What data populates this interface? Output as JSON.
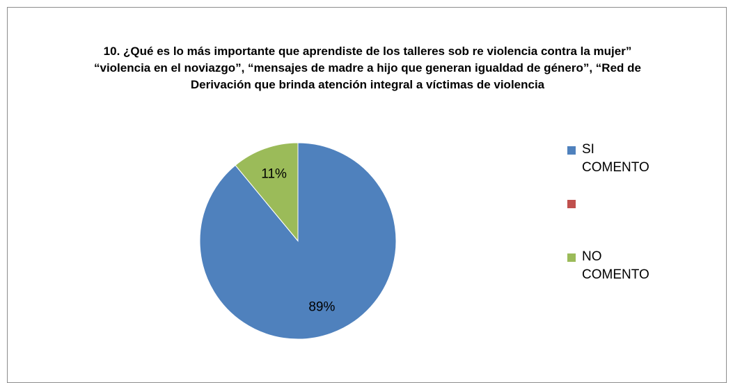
{
  "chart_data": {
    "type": "pie",
    "title": "10. ¿Qué es lo más importante que aprendiste de los talleres sob re violencia contra la mujer” “violencia en el noviazgo”, “mensajes de madre a hijo que generan igualdad de género”, “Red de Derivación que brinda atención integral  a víctimas de violencia",
    "categories": [
      "SI COMENTO",
      null,
      "NO COMENTO"
    ],
    "values": [
      89,
      0,
      11
    ],
    "value_labels": [
      "89%",
      null,
      "11%"
    ],
    "colors": [
      "#4f81bd",
      "#c0504d",
      "#9bbb59"
    ],
    "legend": "right"
  }
}
